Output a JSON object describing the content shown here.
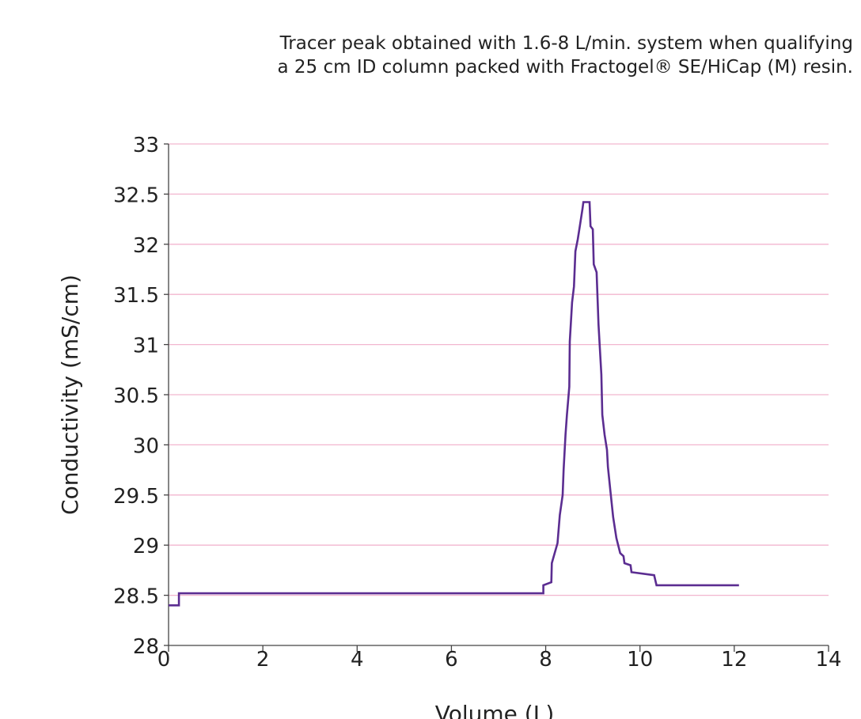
{
  "chart_data": {
    "type": "line",
    "title_lines": [
      "Tracer peak obtained with 1.6-8 L/min. system when qualifying",
      "a 25 cm ID column packed with Fractogel® SE/HiCap (M) resin."
    ],
    "xlabel": "Volume (L)",
    "ylabel": "Conductivity (mS/cm)",
    "xlim": [
      0,
      14
    ],
    "ylim": [
      28,
      33
    ],
    "x_ticks": [
      "0",
      "2",
      "4",
      "6",
      "8",
      "10",
      "12",
      "14"
    ],
    "y_ticks": [
      "28",
      "28.5",
      "29",
      "29.5",
      "30",
      "30.5",
      "31",
      "31.5",
      "32",
      "32.5",
      "33"
    ],
    "grid": true,
    "line_color": "#5b2d91",
    "grid_color": "#f2b6cf",
    "series": [
      {
        "x": [
          0,
          0.22,
          0.22,
          7.95,
          7.95,
          8.12,
          8.13,
          8.25,
          8.3,
          8.36,
          8.38,
          8.42,
          8.45,
          8.5,
          8.51,
          8.56,
          8.6,
          8.63,
          8.68,
          8.72,
          8.78,
          8.8,
          8.93,
          8.95,
          9.0,
          9.02,
          9.08,
          9.12,
          9.18,
          9.2,
          9.25,
          9.3,
          9.32,
          9.37,
          9.43,
          9.5,
          9.58,
          9.65,
          9.67,
          9.8,
          9.82,
          10.3,
          10.35,
          12.1
        ],
        "y": [
          28.4,
          28.4,
          28.52,
          28.52,
          28.6,
          28.63,
          28.82,
          29.02,
          29.3,
          29.5,
          29.75,
          30.1,
          30.3,
          30.58,
          31.03,
          31.42,
          31.58,
          31.93,
          32.05,
          32.17,
          32.35,
          32.42,
          32.42,
          32.18,
          32.15,
          31.8,
          31.72,
          31.2,
          30.7,
          30.3,
          30.1,
          29.95,
          29.78,
          29.55,
          29.28,
          29.07,
          28.92,
          28.89,
          28.82,
          28.8,
          28.73,
          28.7,
          28.6,
          28.6
        ]
      }
    ]
  }
}
